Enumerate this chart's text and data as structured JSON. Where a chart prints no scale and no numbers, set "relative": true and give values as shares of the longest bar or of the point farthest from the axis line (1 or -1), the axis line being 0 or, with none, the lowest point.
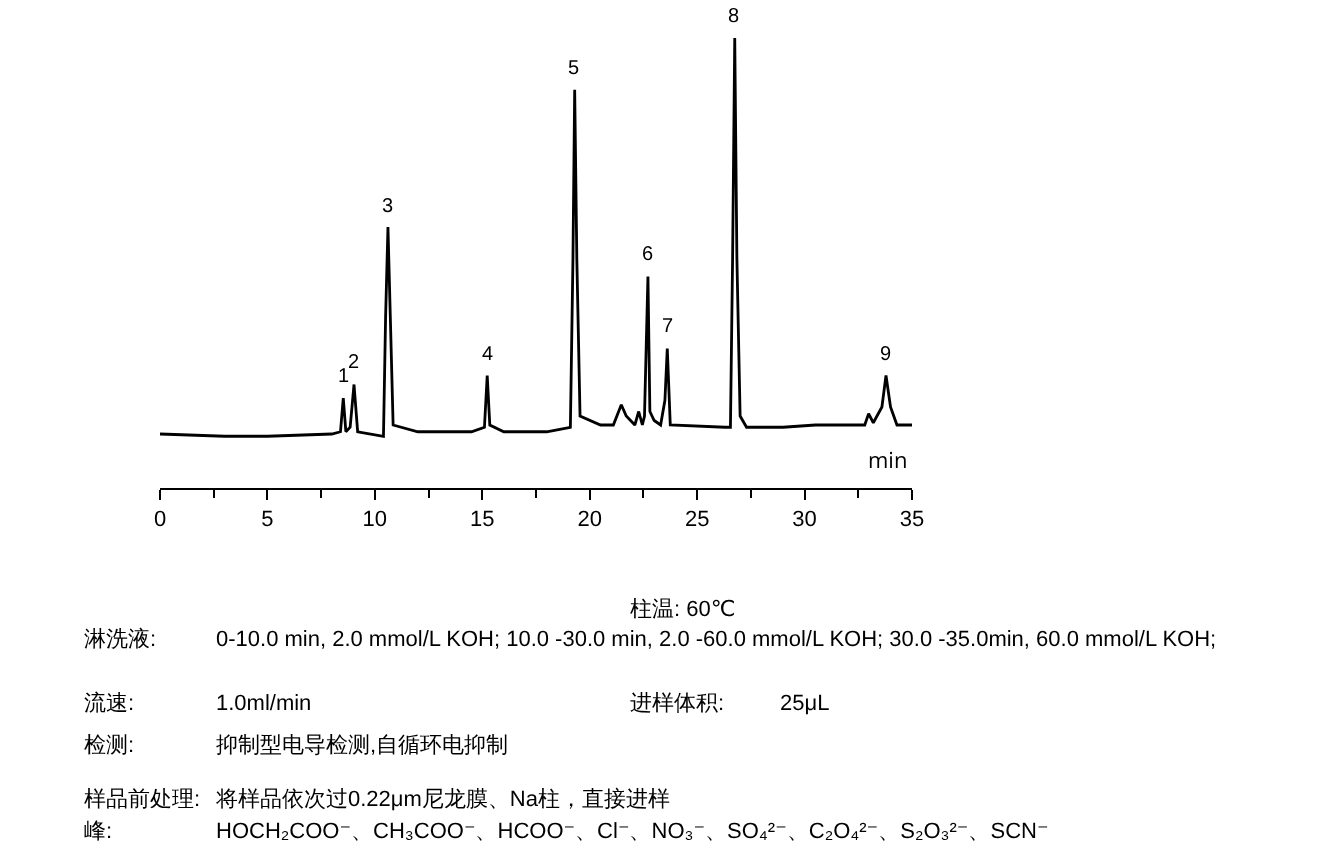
{
  "chart_data": {
    "type": "line",
    "relative": true,
    "xlabel": "min",
    "x": [
      0,
      3.0,
      5.0,
      8.0,
      8.4,
      8.53,
      8.65,
      8.85,
      9.03,
      9.2,
      10.4,
      10.5,
      10.61,
      10.72,
      10.85,
      12,
      14.5,
      15.1,
      15.23,
      15.35,
      16,
      18,
      19.1,
      19.22,
      19.3,
      19.4,
      19.55,
      20.5,
      21.1,
      21.47,
      21.7,
      22.1,
      22.28,
      22.45,
      22.55,
      22.71,
      22.8,
      23.0,
      23.3,
      23.5,
      23.61,
      23.75,
      26.3,
      26.55,
      26.65,
      26.75,
      26.85,
      27.0,
      27.3,
      29,
      30.5,
      31.0,
      32.8,
      32.98,
      33.2,
      33.6,
      33.79,
      34.0,
      34.3,
      35
    ],
    "series": [
      {
        "color": "#000000",
        "values": [
          0.12,
          0.115,
          0.115,
          0.12,
          0.125,
          0.2,
          0.125,
          0.135,
          0.23,
          0.125,
          0.115,
          0.38,
          0.58,
          0.38,
          0.14,
          0.125,
          0.125,
          0.135,
          0.25,
          0.14,
          0.125,
          0.125,
          0.135,
          0.51,
          0.885,
          0.51,
          0.16,
          0.14,
          0.14,
          0.185,
          0.16,
          0.14,
          0.17,
          0.14,
          0.16,
          0.47,
          0.17,
          0.15,
          0.14,
          0.195,
          0.31,
          0.14,
          0.135,
          0.135,
          0.51,
          1.0,
          0.51,
          0.16,
          0.135,
          0.135,
          0.14,
          0.14,
          0.14,
          0.165,
          0.145,
          0.18,
          0.25,
          0.18,
          0.14,
          0.14
        ]
      }
    ],
    "xlim": [
      0,
      35
    ],
    "xticks": [
      0,
      5,
      10,
      15,
      20,
      25,
      30,
      35
    ],
    "annotations": [
      {
        "text": "1",
        "x": 8.53,
        "y": 0.2
      },
      {
        "text": "2",
        "x": 9.03,
        "y": 0.23
      },
      {
        "text": "3",
        "x": 10.61,
        "y": 0.58
      },
      {
        "text": "4",
        "x": 15.23,
        "y": 0.25
      },
      {
        "text": "5",
        "x": 19.3,
        "y": 0.885
      },
      {
        "text": "6",
        "x": 22.71,
        "y": 0.47
      },
      {
        "text": "7",
        "x": 23.61,
        "y": 0.31
      },
      {
        "text": "8",
        "x": 26.75,
        "y": 1.0
      },
      {
        "text": "9",
        "x": 33.79,
        "y": 0.25
      },
      "柱温: 60℃",
      "淋洗液:",
      "0-10.0 min, 2.0 mmol/L KOH; 10.0 -30.0 min, 2.0 -60.0 mmol/L KOH; 30.0 -35.0min, 60.0 mmol/L KOH;",
      "流速:",
      "1.0ml/min",
      "进样体积:",
      "25μL",
      "检测:",
      "抑制型电导检测,自循环电抑制",
      "样品前处理:",
      "将样品依次过0.22μm尼龙膜、Na柱，直接进样",
      "峰:",
      "HOCH₂COO⁻、CH₃COO⁻、HCOO⁻、Cl⁻、NO₃⁻、SO₄²⁻、C₂O₄²⁻、S₂O₃²⁻、SCN⁻"
    ]
  }
}
